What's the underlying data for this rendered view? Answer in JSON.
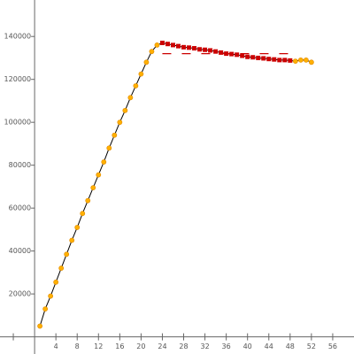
{
  "chart_data": {
    "type": "line",
    "xlim": [
      -6.5,
      60
    ],
    "ylim": [
      -8000,
      157000
    ],
    "xticks": [
      4,
      8,
      12,
      16,
      20,
      24,
      28,
      32,
      36,
      40,
      44,
      48,
      52,
      56
    ],
    "minor_xticks": [
      -4
    ],
    "yticks": [
      20000,
      40000,
      60000,
      80000,
      100000,
      120000,
      140000
    ],
    "line_color": "#000000",
    "series": [
      {
        "color": "#ffb000",
        "marker": "circle",
        "x": [
          1,
          2,
          3,
          4,
          5,
          6,
          7,
          8,
          9,
          10,
          11,
          12,
          13,
          14,
          15,
          16,
          17,
          18,
          19,
          20,
          21,
          22,
          23
        ],
        "values": [
          5000,
          13000,
          19000,
          25500,
          32000,
          38500,
          45000,
          51000,
          57500,
          63500,
          69500,
          75500,
          81500,
          88000,
          94000,
          100000,
          105500,
          111500,
          117000,
          122500,
          128000,
          133000,
          136000
        ]
      },
      {
        "color": "#cc0000",
        "marker": "square",
        "x": [
          24,
          25,
          26,
          27,
          28,
          29,
          30,
          31,
          32,
          33,
          34,
          35,
          36,
          37,
          38,
          39,
          40,
          41,
          42,
          43,
          44,
          45,
          46,
          47,
          48
        ],
        "values": [
          137000,
          136500,
          136000,
          135500,
          135000,
          134800,
          134500,
          134000,
          133800,
          133500,
          133000,
          132500,
          132000,
          131800,
          131500,
          131000,
          130500,
          130300,
          130000,
          129800,
          129500,
          129300,
          129000,
          129000,
          128800
        ]
      },
      {
        "color": "#ffb000",
        "marker": "circle",
        "x": [
          49,
          50,
          51,
          52
        ],
        "values": [
          128500,
          129000,
          129000,
          128000
        ]
      },
      {
        "color": "#cc0000",
        "marker": "none",
        "dashed": true,
        "x": [
          24,
          48
        ],
        "values": [
          132000,
          132000
        ]
      }
    ]
  }
}
